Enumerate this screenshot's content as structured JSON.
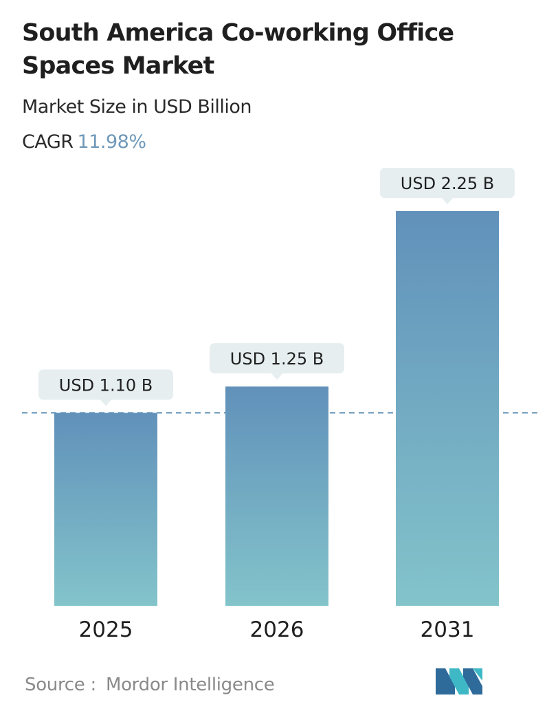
{
  "title": "South America Co-working Office Spaces Market",
  "subtitle": "Market Size in USD Billion",
  "cagr": {
    "label": "CAGR",
    "value": "11.98%"
  },
  "source": {
    "label": "Source :",
    "name": "Mordor Intelligence"
  },
  "logo": {
    "icon": "mordor-intelligence-logo",
    "colors": [
      "#2e6a9a",
      "#3fb8c6"
    ]
  },
  "chart_data": {
    "type": "bar",
    "categories": [
      "2025",
      "2026",
      "2031"
    ],
    "values": [
      1.1,
      1.25,
      2.25
    ],
    "data_labels": [
      "USD 1.10 B",
      "USD 1.25 B",
      "USD 2.25 B"
    ],
    "title": "South America Co-working Office Spaces Market",
    "subtitle": "Market Size in USD Billion",
    "xlabel": "",
    "ylabel": "",
    "ylim": [
      0,
      2.25
    ],
    "reference_line": 1.1,
    "grid": false,
    "legend": "none",
    "colors": {
      "bar_top": "#6191ba",
      "bar_bottom": "#83c4cb",
      "label_bg": "#e6eef0",
      "reference_line": "#5b8db5"
    }
  }
}
